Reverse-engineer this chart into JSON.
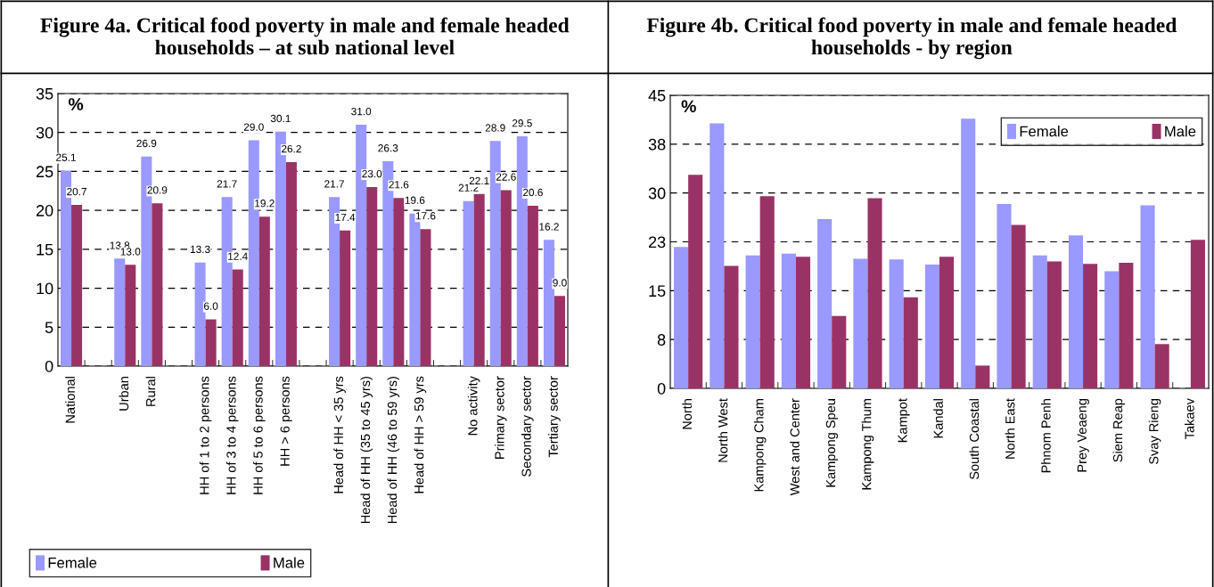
{
  "chart_data": [
    {
      "type": "bar",
      "title": "Figure 4a. Critical food poverty in male and female headed households – at sub national level",
      "ylabel": "%",
      "categories": [
        "National",
        null,
        "Urban",
        "Rural",
        null,
        "HH of 1 to 2 persons",
        "HH of 3 to 4 persons",
        "HH of 5 to 6 persons",
        "HH > 6 persons",
        null,
        "Head of HH < 35 yrs",
        "Head of HH (35 to 45 yrs)",
        "Head of HH (46 to 59 yrs)",
        "Head of HH > 59 yrs",
        null,
        "No activity",
        "Primary sector",
        "Secondary sector",
        "Tertiary sector"
      ],
      "series": [
        {
          "name": "Female",
          "color": "#9999ff",
          "values": [
            25.1,
            null,
            13.8,
            26.9,
            null,
            13.3,
            21.7,
            29.0,
            30.1,
            null,
            21.7,
            31.0,
            26.3,
            19.6,
            null,
            21.2,
            28.9,
            29.5,
            16.2
          ],
          "value_labels": [
            "25.1",
            null,
            "13.8",
            "26.9",
            null,
            "13.3",
            "21.7",
            "29.0",
            "30.1",
            null,
            "21.7",
            "31.0",
            "26.3",
            "19.6",
            null,
            "21.2",
            "28.9",
            "29.5",
            "16.2"
          ]
        },
        {
          "name": "Male",
          "color": "#993366",
          "values": [
            20.7,
            null,
            13.0,
            20.9,
            null,
            6.0,
            12.4,
            19.2,
            26.2,
            null,
            17.4,
            23.0,
            21.6,
            17.6,
            null,
            22.1,
            22.6,
            20.6,
            9.0
          ],
          "value_labels": [
            "20.7",
            null,
            "13.0",
            "20.9",
            null,
            "6.0",
            "12.4",
            "19.2",
            "26.2",
            null,
            "17.4",
            "23.0",
            "21.6",
            "17.6",
            null,
            "22.1",
            "22.6",
            "20.6",
            "9.0"
          ]
        }
      ],
      "ylim": [
        0,
        35
      ],
      "yticks": [
        0,
        5,
        10,
        15,
        20,
        25,
        30,
        35
      ],
      "grid": "y",
      "legend": "bottom left"
    },
    {
      "type": "bar",
      "title": "Figure 4b. Critical food poverty in male and female headed households - by region",
      "ylabel": "%",
      "categories": [
        "North",
        "North West",
        "Kampong Cham",
        "West and Center",
        "Kampong Speu",
        "Kampong Thum",
        "Kampot",
        "Kandal",
        "South Coastal",
        "North East",
        "Phnom Penh",
        "Prey Veaeng",
        "Siem Reap",
        "Svay Rieng",
        "Takaev"
      ],
      "series": [
        {
          "name": "Female",
          "color": "#9999ff",
          "values": [
            21.7,
            40.7,
            20.4,
            20.7,
            26.0,
            19.9,
            19.8,
            19.0,
            41.4,
            28.3,
            20.4,
            23.5,
            18.0,
            28.1,
            null
          ]
        },
        {
          "name": "Male",
          "color": "#993366",
          "values": [
            32.8,
            18.8,
            29.5,
            20.2,
            11.1,
            29.2,
            14.0,
            20.2,
            3.5,
            25.1,
            19.5,
            19.1,
            19.3,
            6.8,
            22.8
          ]
        }
      ],
      "ylim": [
        0,
        45
      ],
      "yticks": [
        0,
        {
          "value": 7.5,
          "label": "8"
        },
        15,
        {
          "value": 22.5,
          "label": "23"
        },
        30,
        {
          "value": 37.5,
          "label": "38"
        },
        45
      ],
      "grid": "y",
      "legend": "top right"
    }
  ]
}
